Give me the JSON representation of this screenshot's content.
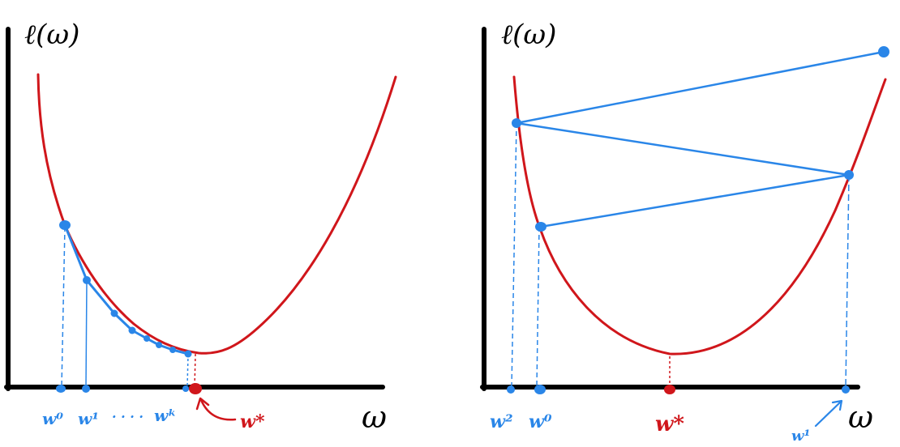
{
  "colors": {
    "axis": "#000000",
    "curve": "#d0161b",
    "iterates": "#2a86e8",
    "optimum": "#d0161b",
    "background": "#ffffff"
  },
  "left_panel": {
    "y_axis_label": "ℓ(ω)",
    "x_axis_label": "ω",
    "optimum_label": "w*",
    "iterate_labels": {
      "first": "w⁰",
      "second": "w¹",
      "dots": "· · · ·",
      "last": "wᵏ"
    }
  },
  "right_panel": {
    "y_axis_label": "ℓ(ω)",
    "x_axis_label": "ω",
    "optimum_label": "w*",
    "iterate_labels": {
      "w2": "w²",
      "w0": "w⁰",
      "w1": "w¹"
    }
  }
}
